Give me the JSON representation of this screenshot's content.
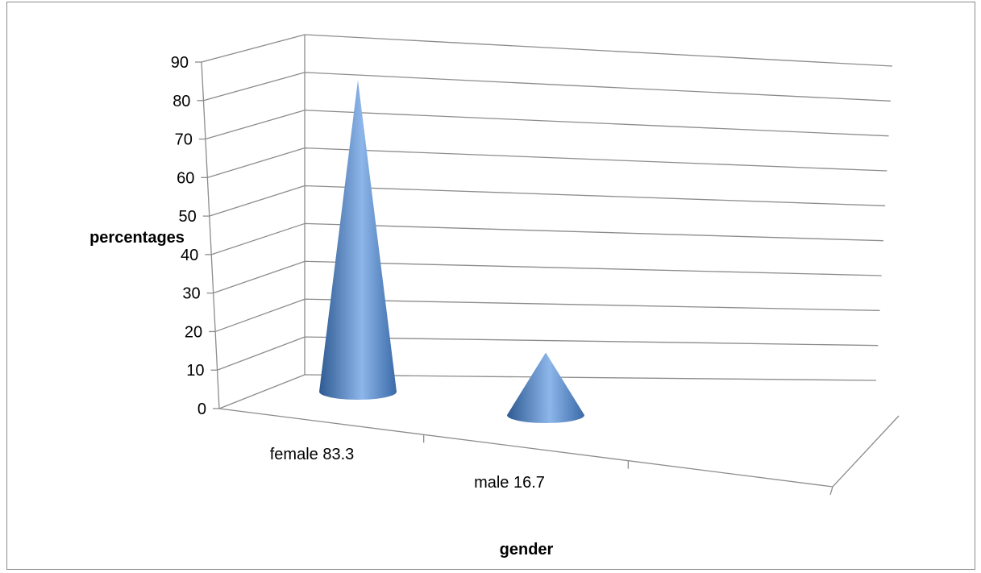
{
  "chart_data": {
    "type": "bar",
    "style": "3d-cone",
    "categories": [
      "female 83.3",
      "male 16.7"
    ],
    "values": [
      83.3,
      16.7
    ],
    "title": "",
    "xlabel": "gender",
    "ylabel": "percentages",
    "ylim": [
      0,
      90
    ],
    "yticks": [
      0,
      10,
      20,
      30,
      40,
      50,
      60,
      70,
      80,
      90
    ],
    "grid": true,
    "legend": "none",
    "colors": {
      "cone": "#4f81bd",
      "cone_dark": "#2e5a92",
      "cone_light": "#8db6ea",
      "grid": "#8c8c8c"
    }
  }
}
